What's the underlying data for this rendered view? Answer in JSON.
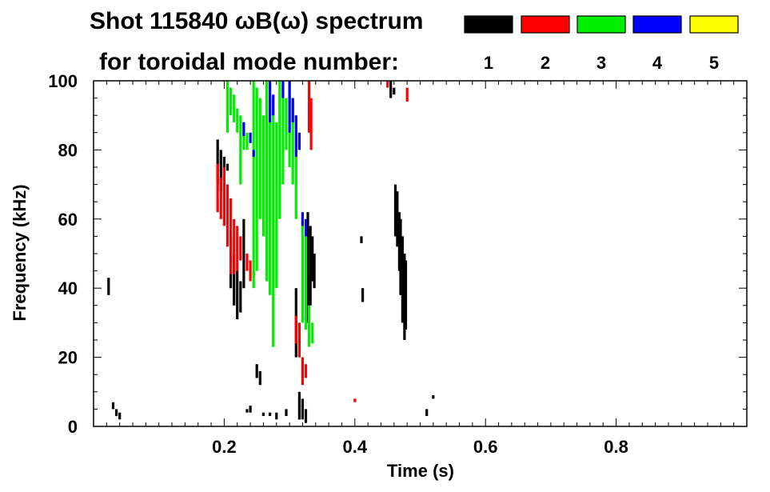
{
  "chart_data": {
    "type": "scatter",
    "title": "Shot 115840 ωB(ω) spectrum",
    "subtitle": "for toroidal mode number:",
    "xlabel": "Time (s)",
    "ylabel": "Frequency (kHz)",
    "xlim": [
      0.0,
      1.0
    ],
    "ylim": [
      0,
      100
    ],
    "x_ticks": [
      {
        "value": 0.2,
        "label": "0.2"
      },
      {
        "value": 0.4,
        "label": "0.4"
      },
      {
        "value": 0.6,
        "label": "0.6"
      },
      {
        "value": 0.8,
        "label": "0.8"
      }
    ],
    "y_ticks": [
      {
        "value": 0,
        "label": "0"
      },
      {
        "value": 20,
        "label": "20"
      },
      {
        "value": 40,
        "label": "40"
      },
      {
        "value": 60,
        "label": "60"
      },
      {
        "value": 80,
        "label": "80"
      },
      {
        "value": 100,
        "label": "100"
      }
    ],
    "legend": [
      {
        "label": "1",
        "color": "#000000"
      },
      {
        "label": "2",
        "color": "#ff0000"
      },
      {
        "label": "3",
        "color": "#00ee00"
      },
      {
        "label": "4",
        "color": "#0000ff"
      },
      {
        "label": "5",
        "color": "#ffff00"
      }
    ],
    "series": [
      {
        "name": "n=1",
        "color": "#000000",
        "points": [
          [
            0.023,
            43,
            38
          ],
          [
            0.03,
            7,
            5
          ],
          [
            0.035,
            5,
            3
          ],
          [
            0.04,
            4,
            2
          ],
          [
            0.19,
            83,
            70
          ],
          [
            0.195,
            80,
            68
          ],
          [
            0.2,
            78,
            71
          ],
          [
            0.205,
            76,
            74
          ],
          [
            0.21,
            55,
            40
          ],
          [
            0.215,
            50,
            35
          ],
          [
            0.22,
            45,
            31
          ],
          [
            0.225,
            42,
            33
          ],
          [
            0.23,
            60,
            40
          ],
          [
            0.25,
            18,
            14
          ],
          [
            0.255,
            16,
            12
          ],
          [
            0.235,
            5,
            4
          ],
          [
            0.24,
            6,
            4
          ],
          [
            0.26,
            4,
            3
          ],
          [
            0.27,
            4,
            3
          ],
          [
            0.28,
            4,
            2
          ],
          [
            0.295,
            5,
            3
          ],
          [
            0.31,
            40,
            20
          ],
          [
            0.315,
            10,
            2
          ],
          [
            0.32,
            8,
            2
          ],
          [
            0.325,
            5,
            1
          ],
          [
            0.328,
            62,
            30
          ],
          [
            0.332,
            58,
            35
          ],
          [
            0.335,
            55,
            42
          ],
          [
            0.338,
            50,
            40
          ],
          [
            0.41,
            55,
            53
          ],
          [
            0.412,
            40,
            36
          ],
          [
            0.455,
            100,
            95
          ],
          [
            0.46,
            98,
            96
          ],
          [
            0.462,
            70,
            55
          ],
          [
            0.465,
            68,
            52
          ],
          [
            0.468,
            62,
            45
          ],
          [
            0.47,
            60,
            38
          ],
          [
            0.473,
            55,
            30
          ],
          [
            0.476,
            50,
            25
          ],
          [
            0.478,
            48,
            28
          ],
          [
            0.51,
            5,
            3
          ],
          [
            0.52,
            9,
            8
          ]
        ]
      },
      {
        "name": "n=2",
        "color": "#ff0000",
        "points": [
          [
            0.19,
            76,
            62
          ],
          [
            0.195,
            72,
            60
          ],
          [
            0.2,
            75,
            58
          ],
          [
            0.205,
            70,
            52
          ],
          [
            0.21,
            66,
            44
          ],
          [
            0.215,
            60,
            44
          ],
          [
            0.22,
            58,
            45
          ],
          [
            0.225,
            55,
            48
          ],
          [
            0.235,
            50,
            45
          ],
          [
            0.24,
            48,
            42
          ],
          [
            0.245,
            45,
            43
          ],
          [
            0.31,
            32,
            24
          ],
          [
            0.315,
            30,
            20
          ],
          [
            0.32,
            20,
            12
          ],
          [
            0.325,
            18,
            14
          ],
          [
            0.33,
            100,
            85
          ],
          [
            0.333,
            95,
            80
          ],
          [
            0.4,
            8,
            7
          ],
          [
            0.45,
            100,
            98
          ],
          [
            0.48,
            98,
            94
          ]
        ]
      },
      {
        "name": "n=3",
        "color": "#00ee00",
        "points": [
          [
            0.205,
            100,
            85
          ],
          [
            0.21,
            98,
            90
          ],
          [
            0.215,
            96,
            88
          ],
          [
            0.22,
            92,
            85
          ],
          [
            0.225,
            90,
            70
          ],
          [
            0.23,
            88,
            80
          ],
          [
            0.235,
            85,
            80
          ],
          [
            0.245,
            100,
            40
          ],
          [
            0.25,
            98,
            45
          ],
          [
            0.255,
            95,
            60
          ],
          [
            0.26,
            90,
            55
          ],
          [
            0.265,
            100,
            42
          ],
          [
            0.27,
            95,
            38
          ],
          [
            0.275,
            92,
            23
          ],
          [
            0.28,
            88,
            40
          ],
          [
            0.285,
            100,
            60
          ],
          [
            0.29,
            98,
            70
          ],
          [
            0.295,
            95,
            80
          ],
          [
            0.3,
            100,
            75
          ],
          [
            0.305,
            95,
            70
          ],
          [
            0.31,
            80,
            60
          ],
          [
            0.32,
            60,
            30
          ],
          [
            0.325,
            55,
            28
          ],
          [
            0.33,
            35,
            23
          ],
          [
            0.335,
            30,
            24
          ]
        ]
      },
      {
        "name": "n=4",
        "color": "#0000ff",
        "points": [
          [
            0.23,
            88,
            84
          ],
          [
            0.24,
            85,
            82
          ],
          [
            0.245,
            80,
            78
          ],
          [
            0.27,
            100,
            88
          ],
          [
            0.275,
            96,
            90
          ],
          [
            0.29,
            100,
            95
          ],
          [
            0.3,
            100,
            85
          ],
          [
            0.305,
            95,
            88
          ],
          [
            0.31,
            90,
            78
          ],
          [
            0.315,
            85,
            80
          ],
          [
            0.32,
            62,
            58
          ],
          [
            0.325,
            60,
            55
          ]
        ]
      },
      {
        "name": "n=5",
        "color": "#ffff00",
        "points": []
      }
    ]
  }
}
